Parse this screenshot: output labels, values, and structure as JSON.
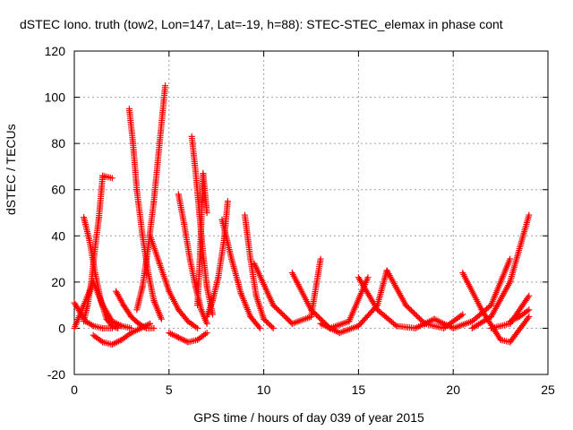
{
  "chart_data": {
    "type": "scatter",
    "title": "dSTEC Iono. truth (tow2, Lon=147, Lat=-19, h=88): STEC-STEC_elemax in phase cont",
    "xlabel": "GPS time / hours of day 039 of year 2015",
    "ylabel": "dSTEC  / TECUs",
    "xlim": [
      0,
      25
    ],
    "ylim": [
      -20,
      120
    ],
    "xticks": [
      0,
      5,
      10,
      15,
      20,
      25
    ],
    "yticks": [
      -20,
      0,
      20,
      40,
      60,
      80,
      100,
      120
    ],
    "grid": true,
    "marker": "+",
    "color": "#ff0000",
    "series": [
      {
        "x": [
          0.0,
          0.5,
          1.0,
          1.5,
          2.0,
          2.5,
          3.0
        ],
        "y": [
          0,
          10,
          20,
          10,
          3,
          1,
          0
        ]
      },
      {
        "x": [
          0.0,
          0.3,
          0.6,
          1.0,
          1.5,
          2.0
        ],
        "y": [
          11,
          7,
          3,
          1,
          0,
          0
        ]
      },
      {
        "x": [
          0.5,
          0.8,
          1.1,
          1.4,
          1.7,
          2.0,
          2.3
        ],
        "y": [
          48,
          38,
          24,
          12,
          4,
          1,
          0
        ]
      },
      {
        "x": [
          0.5,
          0.7,
          0.9,
          1.1,
          1.3,
          1.5,
          2.0
        ],
        "y": [
          3,
          10,
          20,
          35,
          48,
          66,
          65
        ]
      },
      {
        "x": [
          1.0,
          1.5,
          2.0,
          2.5,
          3.0,
          3.5,
          4.0
        ],
        "y": [
          -3,
          -6,
          -7,
          -5,
          -2,
          0,
          2
        ]
      },
      {
        "x": [
          2.2,
          2.6,
          3.0,
          3.4,
          3.8,
          4.2
        ],
        "y": [
          16,
          10,
          5,
          2,
          0,
          0
        ]
      },
      {
        "x": [
          2.9,
          3.1,
          3.3,
          3.6,
          3.9,
          4.2,
          4.6
        ],
        "y": [
          95,
          80,
          60,
          40,
          24,
          12,
          4
        ]
      },
      {
        "x": [
          3.3,
          3.6,
          3.9,
          4.2,
          4.5,
          4.8
        ],
        "y": [
          8,
          18,
          35,
          55,
          80,
          105
        ]
      },
      {
        "x": [
          4.0,
          4.5,
          5.0,
          5.5,
          6.0,
          6.5
        ],
        "y": [
          40,
          28,
          16,
          8,
          3,
          0
        ]
      },
      {
        "x": [
          5.0,
          5.5,
          6.0,
          6.5,
          7.0
        ],
        "y": [
          -2,
          -4,
          -6,
          -5,
          -2
        ]
      },
      {
        "x": [
          5.5,
          5.8,
          6.1,
          6.4,
          6.7,
          7.0
        ],
        "y": [
          58,
          45,
          30,
          18,
          8,
          2
        ]
      },
      {
        "x": [
          6.2,
          6.4,
          6.6,
          6.8,
          7.0,
          7.3
        ],
        "y": [
          83,
          68,
          50,
          32,
          18,
          6
        ]
      },
      {
        "x": [
          6.5,
          6.6,
          6.7,
          6.8,
          7.0
        ],
        "y": [
          10,
          25,
          45,
          67,
          50
        ]
      },
      {
        "x": [
          7.0,
          7.3,
          7.6,
          7.9,
          8.1
        ],
        "y": [
          5,
          12,
          22,
          38,
          55
        ]
      },
      {
        "x": [
          7.8,
          8.3,
          8.8,
          9.3,
          9.8
        ],
        "y": [
          47,
          30,
          15,
          5,
          0
        ]
      },
      {
        "x": [
          9.0,
          9.3,
          9.6,
          10.0,
          10.5
        ],
        "y": [
          49,
          30,
          14,
          4,
          0
        ]
      },
      {
        "x": [
          9.5,
          10.5,
          11.5,
          12.5,
          13.0
        ],
        "y": [
          28,
          10,
          2,
          5,
          30
        ]
      },
      {
        "x": [
          11.5,
          12.5,
          13.5,
          14.5,
          15.5
        ],
        "y": [
          24,
          8,
          0,
          3,
          22
        ]
      },
      {
        "x": [
          13.0,
          14.0,
          15.0,
          16.0,
          16.5
        ],
        "y": [
          2,
          -2,
          1,
          10,
          25
        ]
      },
      {
        "x": [
          15.0,
          16.0,
          17.0,
          18.0,
          19.0
        ],
        "y": [
          22,
          8,
          1,
          0,
          4
        ]
      },
      {
        "x": [
          16.5,
          17.5,
          18.5,
          19.5,
          20.5
        ],
        "y": [
          25,
          10,
          2,
          0,
          6
        ]
      },
      {
        "x": [
          19.0,
          20.0,
          21.0,
          22.0,
          23.0
        ],
        "y": [
          4,
          0,
          3,
          10,
          30
        ]
      },
      {
        "x": [
          20.5,
          21.5,
          22.5,
          23.0,
          24.0
        ],
        "y": [
          24,
          8,
          -5,
          -6,
          5
        ]
      },
      {
        "x": [
          21.0,
          22.0,
          23.0,
          24.0
        ],
        "y": [
          0,
          5,
          20,
          49
        ]
      },
      {
        "x": [
          22.0,
          23.0,
          24.0
        ],
        "y": [
          0,
          2,
          14
        ]
      },
      {
        "x": [
          23.0,
          23.5,
          24.0
        ],
        "y": [
          3,
          5,
          8
        ]
      }
    ]
  }
}
